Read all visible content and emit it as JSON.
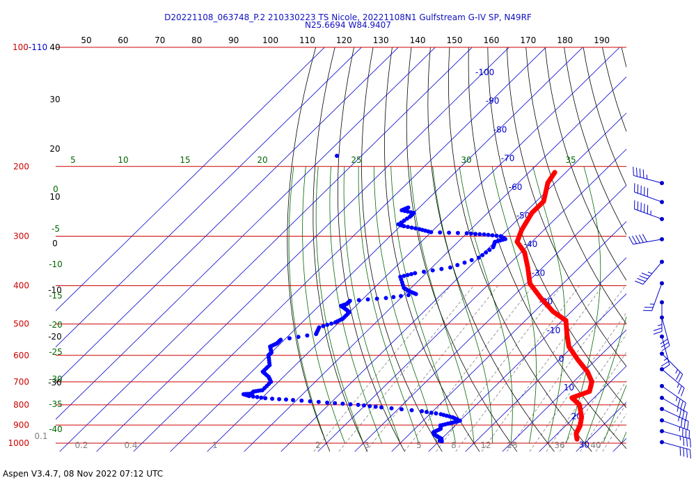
{
  "title_line1": "D20221108_063748_P.2 210330223 TS Nicole, 20221108N1 Gulfstream G-IV SP, N49RF",
  "title_line2": "N25.6694 W84.9407",
  "footer": "Aspen V3.4.7, 08 Nov 2022  07:12 UTC",
  "colors": {
    "isobar": "#cc0000",
    "isotherm": "#0000cc",
    "dry_adiabat": "#000000",
    "moist_adiabat": "#006600",
    "mixing_ratio": "#7f7f7f",
    "temperature_trace": "#ff0000",
    "dewpoint_trace": "#0000ff",
    "wind_barb": "#0000cc"
  },
  "chart_data": {
    "type": "line",
    "chart_kind": "skew-T log-P thermodynamic diagram",
    "y_scale": "log (pressure)",
    "ylim_hPa": [
      1000,
      100
    ],
    "pressure_labels": [
      "100-110",
      "200",
      "300",
      "400",
      "500",
      "600",
      "700",
      "800",
      "900",
      "1000"
    ],
    "isobars_hPa": [
      100,
      200,
      300,
      400,
      500,
      600,
      700,
      800,
      900,
      1000
    ],
    "top_axis_ticks": [
      "50",
      "60",
      "70",
      "80",
      "90",
      "100",
      "110",
      "120",
      "130",
      "140",
      "150",
      "160",
      "170",
      "180",
      "190"
    ],
    "left_axis_labels": [
      "40",
      "30",
      "20",
      "10",
      "0",
      "-10",
      "-20",
      "-30"
    ],
    "isotherm_labels": [
      "-100",
      "-90",
      "-80",
      "-70",
      "-60",
      "-50",
      "-40",
      "-30",
      "-20",
      "-10",
      "0",
      "10",
      "20",
      "30"
    ],
    "moist_adiabat_labels": [
      "5",
      "10",
      "15",
      "20",
      "25",
      "30",
      "35"
    ],
    "moist_adiabat_left_labels": [
      "0",
      "-5",
      "-10",
      "-15",
      "-20",
      "-25",
      "-30",
      "-35",
      "-40"
    ],
    "mixing_ratio_labels": [
      "0.1",
      "0.2",
      "0.4",
      "1",
      "2",
      "3",
      "5",
      "8",
      "12",
      "16",
      "20",
      "28",
      "36",
      "40"
    ],
    "temperature_C": {
      "p": [
        207,
        220,
        245,
        262,
        290,
        310,
        330,
        360,
        395,
        430,
        465,
        490,
        530,
        570,
        615,
        660,
        700,
        740,
        768,
        800,
        860,
        905,
        945,
        980
      ],
      "T": [
        -53,
        -52,
        -48,
        -48,
        -46,
        -44,
        -39,
        -34,
        -29,
        -22,
        -15,
        -9,
        -5,
        -1,
        5,
        11,
        15,
        17,
        14,
        18,
        22,
        24,
        25,
        27
      ]
    },
    "dewpoint_C": {
      "p": [
        254,
        258,
        262,
        268,
        280,
        283,
        288,
        293,
        295,
        297,
        300,
        305,
        310,
        320,
        340,
        360,
        372,
        380,
        405,
        412,
        420,
        430,
        437,
        445,
        450,
        458,
        467,
        485,
        495,
        510,
        530,
        548,
        560,
        570,
        590,
        600,
        635,
        660,
        680,
        700,
        735,
        740,
        745,
        750,
        752,
        760,
        770,
        778,
        790,
        800,
        812,
        830,
        845,
        860,
        878,
        890,
        902,
        920,
        938,
        952,
        960,
        975,
        985,
        990
      ],
      "Td": [
        -83,
        -84,
        -80,
        -80,
        -81,
        -79,
        -74,
        -70,
        -60,
        -55,
        -50,
        -48,
        -50,
        -49,
        -50,
        -55,
        -63,
        -66,
        -62,
        -60,
        -57,
        -64,
        -73,
        -73,
        -74,
        -72,
        -70,
        -70,
        -71,
        -74,
        -73,
        -81,
        -81,
        -82,
        -80,
        -80,
        -77,
        -77,
        -74,
        -72,
        -72,
        -74,
        -74,
        -74,
        -76,
        -74,
        -69,
        -61,
        -51,
        -42,
        -35,
        -23,
        -17,
        -13,
        -10,
        -12,
        -14,
        -13,
        -14,
        -13,
        -12,
        -10,
        -10,
        -9
      ]
    },
    "wind_barbs": {
      "p": [
        215,
        240,
        265,
        298,
        340,
        385,
        430,
        470,
        525,
        580,
        635,
        700,
        750,
        800,
        855,
        910,
        970
      ],
      "speed_kt": [
        45,
        50,
        55,
        50,
        45,
        25,
        25,
        30,
        25,
        25,
        25,
        35,
        35,
        35,
        35,
        35,
        40
      ],
      "direction_deg": [
        285,
        290,
        290,
        260,
        220,
        200,
        180,
        165,
        165,
        135,
        130,
        125,
        120,
        115,
        110,
        105,
        105
      ]
    }
  }
}
